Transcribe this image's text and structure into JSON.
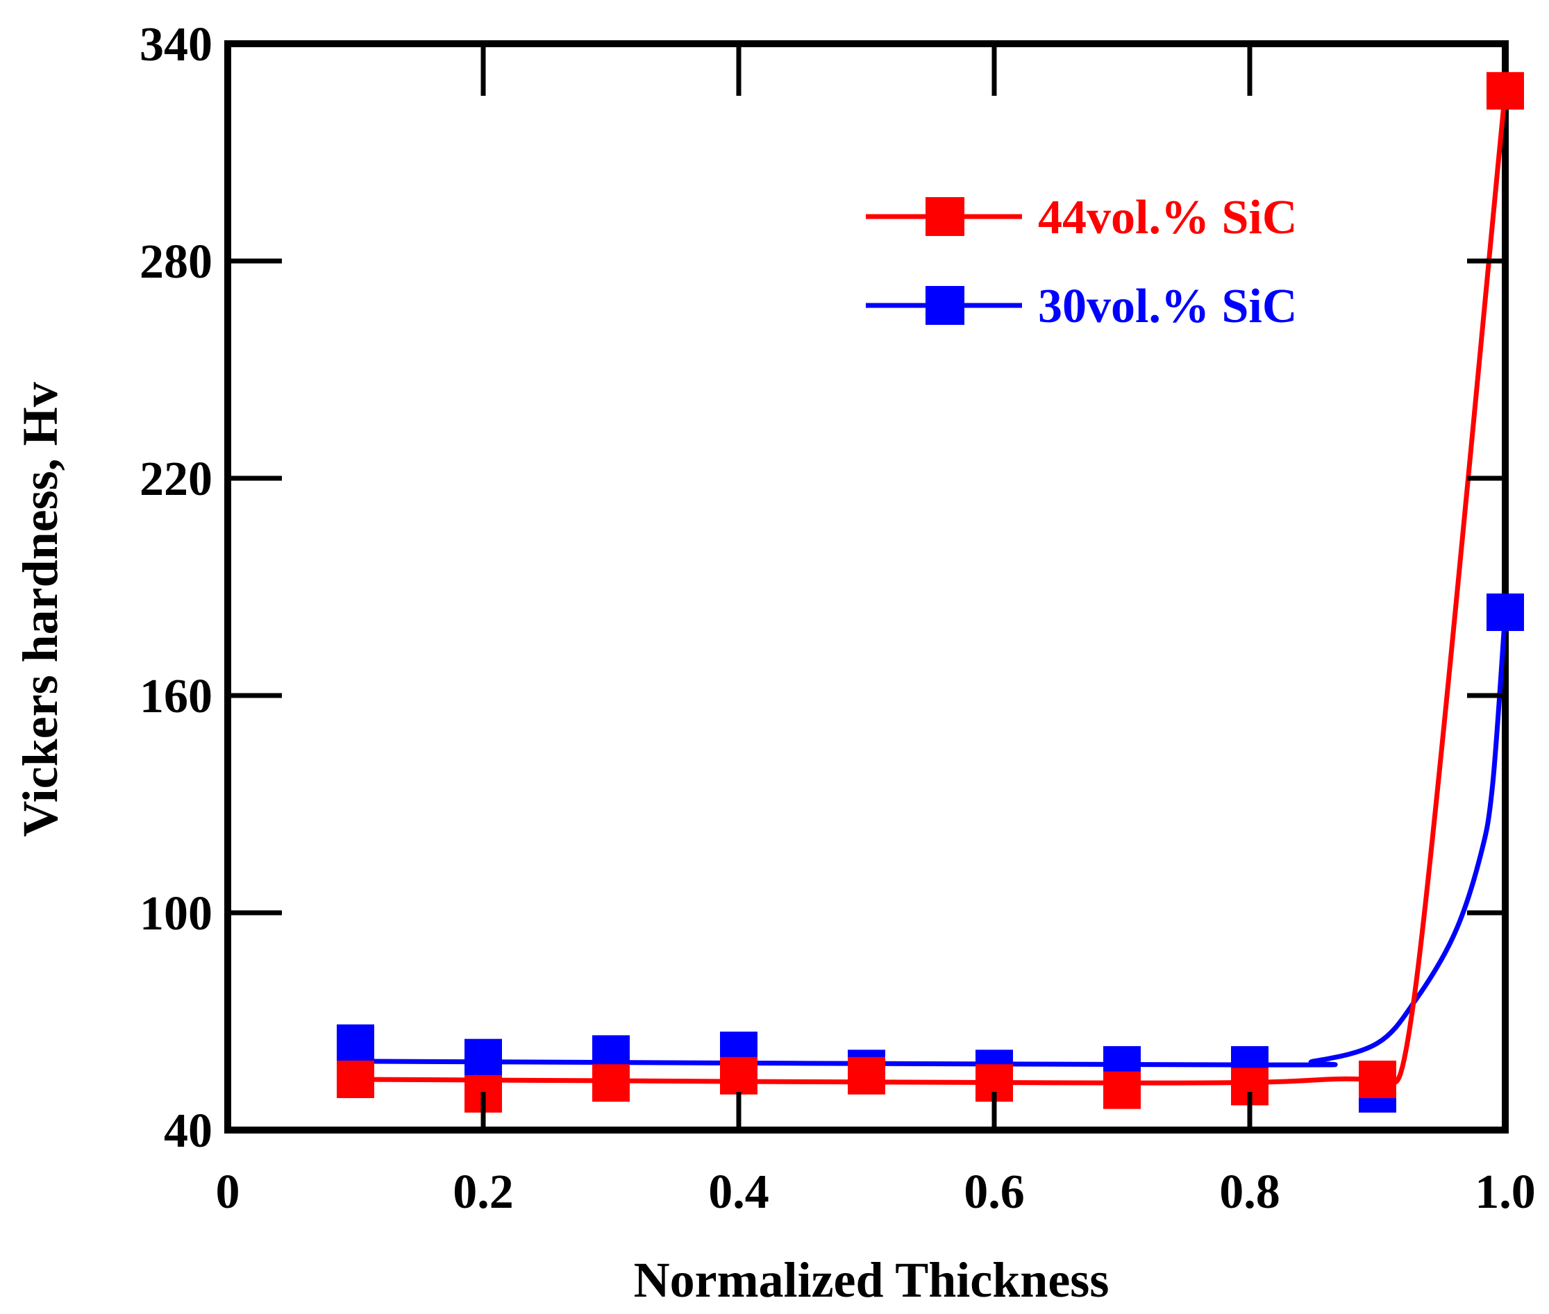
{
  "chart_data": {
    "type": "line",
    "title": "",
    "xlabel": "Normalized Thickness",
    "ylabel": "Vickers hardness, Hv",
    "xlim": [
      0,
      1.0
    ],
    "ylim": [
      40,
      340
    ],
    "x_ticks": [
      0,
      0.2,
      0.4,
      0.6,
      0.8,
      1.0
    ],
    "x_tick_labels": [
      "0",
      "0.2",
      "0.4",
      "0.6",
      "0.8",
      "1.0"
    ],
    "y_ticks": [
      40,
      100,
      160,
      220,
      280,
      340
    ],
    "y_tick_labels": [
      "40",
      "100",
      "160",
      "220",
      "280",
      "340"
    ],
    "grid": false,
    "legend_position": "top-right",
    "series": [
      {
        "name": "44vol.% SiC",
        "color": "#ff0000",
        "marker": "square",
        "x": [
          0.1,
          0.2,
          0.3,
          0.4,
          0.5,
          0.6,
          0.7,
          0.8,
          0.9,
          1.0
        ],
        "values": [
          54,
          50,
          53,
          55,
          55,
          53,
          51,
          52,
          54,
          327
        ],
        "curve": [
          [
            0.1,
            54
          ],
          [
            0.7,
            53
          ],
          [
            0.86,
            54
          ],
          [
            0.9,
            57
          ],
          [
            0.93,
            80
          ],
          [
            1.0,
            327
          ]
        ]
      },
      {
        "name": "30vol.% SiC",
        "color": "#0000ff",
        "marker": "square",
        "x": [
          0.1,
          0.2,
          0.3,
          0.4,
          0.5,
          0.6,
          0.7,
          0.8,
          0.9,
          1.0
        ],
        "values": [
          64,
          60,
          61,
          62,
          57,
          57,
          58,
          58,
          50,
          183
        ],
        "curve": [
          [
            0.1,
            59
          ],
          [
            0.8,
            58
          ],
          [
            0.85,
            59
          ],
          [
            0.9,
            64
          ],
          [
            0.93,
            76
          ],
          [
            0.96,
            94
          ],
          [
            0.98,
            115
          ],
          [
            0.99,
            135
          ],
          [
            1.0,
            183
          ]
        ]
      }
    ]
  }
}
